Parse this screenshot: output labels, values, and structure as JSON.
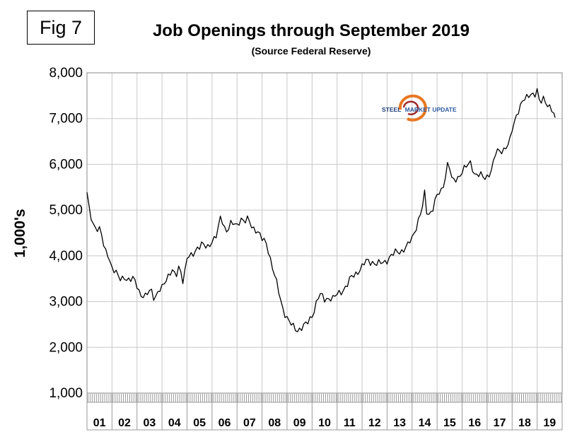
{
  "figure_label": "Fig 7",
  "logo": {
    "text_primary": "STEEL",
    "text_secondary": "MARKET UPDATE"
  },
  "chart_data": {
    "type": "line",
    "title": "Job Openings through September 2019",
    "subtitle": "(Source Federal Reserve)",
    "ylabel": "1,000's",
    "xlabel": "",
    "ylim": [
      1000,
      8000
    ],
    "yticks": [
      1000,
      2000,
      3000,
      4000,
      5000,
      6000,
      7000,
      8000
    ],
    "ytick_labels": [
      "1,000",
      "2,000",
      "3,000",
      "4,000",
      "5,000",
      "6,000",
      "7,000",
      "8,000"
    ],
    "categories": [
      "01",
      "02",
      "03",
      "04",
      "05",
      "06",
      "07",
      "08",
      "09",
      "10",
      "11",
      "12",
      "13",
      "14",
      "15",
      "16",
      "17",
      "18",
      "19"
    ],
    "grid": true,
    "line_color": "#000000",
    "series": [
      {
        "anchors": [
          [
            2001.0,
            5350
          ],
          [
            2001.1,
            4950
          ],
          [
            2001.25,
            4700
          ],
          [
            2001.4,
            4620
          ],
          [
            2001.55,
            4550
          ],
          [
            2001.7,
            4100
          ],
          [
            2001.85,
            4050
          ],
          [
            2002.0,
            3750
          ],
          [
            2002.15,
            3620
          ],
          [
            2002.3,
            3480
          ],
          [
            2002.5,
            3560
          ],
          [
            2002.7,
            3430
          ],
          [
            2002.85,
            3500
          ],
          [
            2003.0,
            3380
          ],
          [
            2003.15,
            3150
          ],
          [
            2003.35,
            3080
          ],
          [
            2003.55,
            3300
          ],
          [
            2003.7,
            3080
          ],
          [
            2003.85,
            3200
          ],
          [
            2004.0,
            3280
          ],
          [
            2004.2,
            3550
          ],
          [
            2004.4,
            3700
          ],
          [
            2004.55,
            3500
          ],
          [
            2004.7,
            3800
          ],
          [
            2004.85,
            3450
          ],
          [
            2005.0,
            3950
          ],
          [
            2005.2,
            3980
          ],
          [
            2005.4,
            4200
          ],
          [
            2005.6,
            4250
          ],
          [
            2005.8,
            4150
          ],
          [
            2006.0,
            4350
          ],
          [
            2006.2,
            4450
          ],
          [
            2006.35,
            4850
          ],
          [
            2006.55,
            4550
          ],
          [
            2006.75,
            4700
          ],
          [
            2007.0,
            4650
          ],
          [
            2007.15,
            4850
          ],
          [
            2007.3,
            4750
          ],
          [
            2007.45,
            4780
          ],
          [
            2007.6,
            4620
          ],
          [
            2007.8,
            4580
          ],
          [
            2008.0,
            4350
          ],
          [
            2008.2,
            4250
          ],
          [
            2008.4,
            3800
          ],
          [
            2008.6,
            3350
          ],
          [
            2008.8,
            2900
          ],
          [
            2009.0,
            2650
          ],
          [
            2009.2,
            2450
          ],
          [
            2009.4,
            2380
          ],
          [
            2009.6,
            2450
          ],
          [
            2009.8,
            2500
          ],
          [
            2010.0,
            2700
          ],
          [
            2010.15,
            2950
          ],
          [
            2010.3,
            3150
          ],
          [
            2010.5,
            3050
          ],
          [
            2010.7,
            3100
          ],
          [
            2010.85,
            3050
          ],
          [
            2011.0,
            3150
          ],
          [
            2011.2,
            3250
          ],
          [
            2011.4,
            3350
          ],
          [
            2011.6,
            3550
          ],
          [
            2011.8,
            3650
          ],
          [
            2012.0,
            3750
          ],
          [
            2012.2,
            3900
          ],
          [
            2012.4,
            3880
          ],
          [
            2012.6,
            3800
          ],
          [
            2012.8,
            3850
          ],
          [
            2013.0,
            3920
          ],
          [
            2013.2,
            4000
          ],
          [
            2013.4,
            4100
          ],
          [
            2013.6,
            4120
          ],
          [
            2013.8,
            4180
          ],
          [
            2014.0,
            4400
          ],
          [
            2014.2,
            4700
          ],
          [
            2014.4,
            5000
          ],
          [
            2014.5,
            5350
          ],
          [
            2014.6,
            4900
          ],
          [
            2014.8,
            5000
          ],
          [
            2015.0,
            5300
          ],
          [
            2015.2,
            5450
          ],
          [
            2015.35,
            5800
          ],
          [
            2015.45,
            6100
          ],
          [
            2015.6,
            5600
          ],
          [
            2015.8,
            5700
          ],
          [
            2016.0,
            5850
          ],
          [
            2016.2,
            5950
          ],
          [
            2016.35,
            6050
          ],
          [
            2016.5,
            5800
          ],
          [
            2016.7,
            5750
          ],
          [
            2016.9,
            5700
          ],
          [
            2017.0,
            5750
          ],
          [
            2017.2,
            5900
          ],
          [
            2017.35,
            6250
          ],
          [
            2017.5,
            6300
          ],
          [
            2017.7,
            6350
          ],
          [
            2017.9,
            6450
          ],
          [
            2018.0,
            6750
          ],
          [
            2018.2,
            7150
          ],
          [
            2018.4,
            7350
          ],
          [
            2018.6,
            7450
          ],
          [
            2018.75,
            7580
          ],
          [
            2018.9,
            7520
          ],
          [
            2019.0,
            7600
          ],
          [
            2019.1,
            7300
          ],
          [
            2019.25,
            7450
          ],
          [
            2019.4,
            7350
          ],
          [
            2019.55,
            7200
          ],
          [
            2019.72,
            7020
          ]
        ]
      }
    ]
  }
}
